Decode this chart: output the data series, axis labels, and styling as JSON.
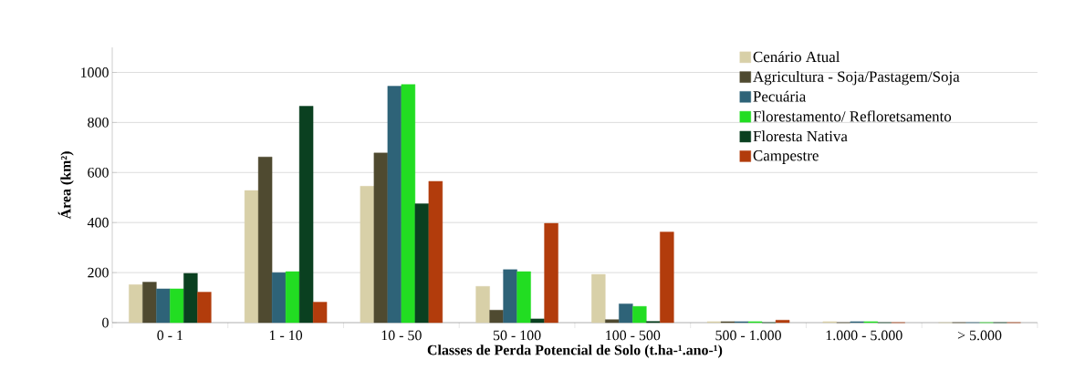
{
  "chart_data": {
    "type": "bar",
    "xlabel": "Classes de Perda Potencial de Solo (t.ha-¹.ano-¹)",
    "ylabel": "Área (km²)",
    "categories": [
      "0 - 1",
      "1 - 10",
      "10 - 50",
      "50 - 100",
      "100 - 500",
      "500 - 1.000",
      "1.000 - 5.000",
      "> 5.000"
    ],
    "series": [
      {
        "name": "Cenário Atual",
        "color": "#d8d0a8",
        "values": [
          152,
          528,
          545,
          145,
          193,
          4,
          4,
          0
        ]
      },
      {
        "name": "Agricultura - Soja/Pastagem/Soja",
        "color": "#4f4a30",
        "values": [
          162,
          662,
          678,
          50,
          12,
          4,
          0,
          0
        ]
      },
      {
        "name": "Pecuária",
        "color": "#2e6378",
        "values": [
          135,
          200,
          945,
          212,
          75,
          4,
          4,
          0
        ]
      },
      {
        "name": "Florestamento/  Refloretsamento",
        "color": "#22dd22",
        "values": [
          135,
          204,
          952,
          204,
          65,
          4,
          4,
          0
        ]
      },
      {
        "name": "Floresta Nativa",
        "color": "#0a4020",
        "values": [
          197,
          865,
          475,
          15,
          5,
          0,
          0,
          0
        ]
      },
      {
        "name": "Campestre",
        "color": "#b23c0c",
        "values": [
          122,
          82,
          565,
          397,
          362,
          10,
          0,
          0
        ]
      }
    ],
    "ylim": [
      0,
      1100
    ],
    "yticks": [
      0,
      200,
      400,
      600,
      800,
      1000
    ],
    "grid": "y",
    "legend": "top right"
  }
}
